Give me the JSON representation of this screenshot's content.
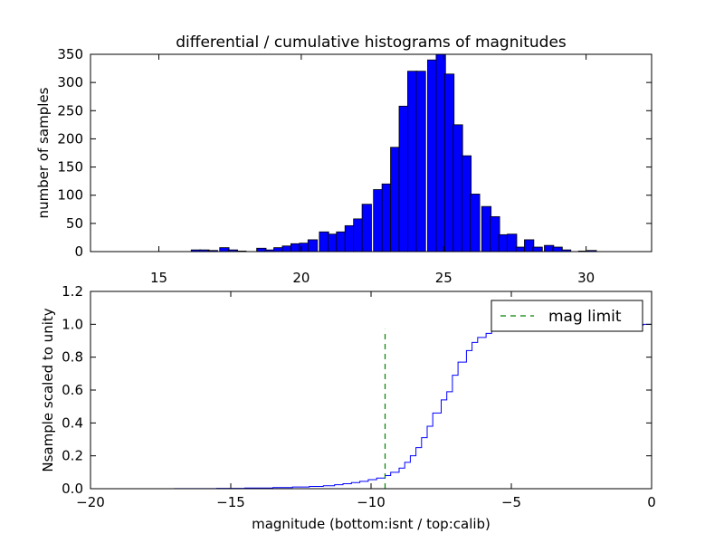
{
  "chart_data": [
    {
      "type": "bar",
      "title": "differential / cumulative histograms of magnitudes",
      "ylabel": "number of samples",
      "xlabel": "",
      "xlim": [
        12.6,
        32.3
      ],
      "ylim": [
        0,
        350
      ],
      "xticks": [
        15,
        20,
        25,
        30
      ],
      "yticks": [
        0,
        50,
        100,
        150,
        200,
        250,
        300,
        350
      ],
      "bar_color": "#0000ff",
      "bar_width": 0.33,
      "bars": [
        {
          "x": 16.3,
          "y": 3
        },
        {
          "x": 16.6,
          "y": 3
        },
        {
          "x": 16.9,
          "y": 2
        },
        {
          "x": 17.3,
          "y": 7
        },
        {
          "x": 17.6,
          "y": 3
        },
        {
          "x": 17.9,
          "y": 1
        },
        {
          "x": 18.6,
          "y": 6
        },
        {
          "x": 18.9,
          "y": 3
        },
        {
          "x": 19.2,
          "y": 7
        },
        {
          "x": 19.5,
          "y": 10
        },
        {
          "x": 19.8,
          "y": 14
        },
        {
          "x": 20.1,
          "y": 15
        },
        {
          "x": 20.4,
          "y": 21
        },
        {
          "x": 20.8,
          "y": 35
        },
        {
          "x": 21.1,
          "y": 31
        },
        {
          "x": 21.4,
          "y": 35
        },
        {
          "x": 21.7,
          "y": 46
        },
        {
          "x": 22.0,
          "y": 58
        },
        {
          "x": 22.3,
          "y": 84
        },
        {
          "x": 22.7,
          "y": 110
        },
        {
          "x": 23.0,
          "y": 120
        },
        {
          "x": 23.3,
          "y": 185
        },
        {
          "x": 23.6,
          "y": 258
        },
        {
          "x": 23.9,
          "y": 320
        },
        {
          "x": 24.2,
          "y": 320
        },
        {
          "x": 24.6,
          "y": 340
        },
        {
          "x": 24.9,
          "y": 350
        },
        {
          "x": 25.2,
          "y": 315
        },
        {
          "x": 25.5,
          "y": 225
        },
        {
          "x": 25.8,
          "y": 170
        },
        {
          "x": 26.1,
          "y": 102
        },
        {
          "x": 26.5,
          "y": 80
        },
        {
          "x": 26.8,
          "y": 62
        },
        {
          "x": 27.1,
          "y": 30
        },
        {
          "x": 27.4,
          "y": 31
        },
        {
          "x": 27.7,
          "y": 8
        },
        {
          "x": 28.0,
          "y": 21
        },
        {
          "x": 28.3,
          "y": 8
        },
        {
          "x": 28.7,
          "y": 11
        },
        {
          "x": 29.0,
          "y": 8
        },
        {
          "x": 29.3,
          "y": 3
        },
        {
          "x": 29.9,
          "y": 1
        },
        {
          "x": 30.2,
          "y": 2
        }
      ]
    },
    {
      "type": "line",
      "xlabel": "magnitude (bottom:isnt / top:calib)",
      "ylabel": "Nsample scaled to unity",
      "xlim": [
        -20,
        0
      ],
      "ylim": [
        0,
        1.2
      ],
      "xticks": [
        -20,
        -15,
        -10,
        -5,
        0
      ],
      "yticks": [
        0.0,
        0.2,
        0.4,
        0.6,
        0.8,
        1.0,
        1.2
      ],
      "step_color": "#0000ff",
      "step": [
        {
          "x": -20.0,
          "y": 0.0
        },
        {
          "x": -17.0,
          "y": 0.001
        },
        {
          "x": -15.5,
          "y": 0.002
        },
        {
          "x": -14.5,
          "y": 0.004
        },
        {
          "x": -13.5,
          "y": 0.007
        },
        {
          "x": -12.8,
          "y": 0.01
        },
        {
          "x": -12.2,
          "y": 0.014
        },
        {
          "x": -11.7,
          "y": 0.018
        },
        {
          "x": -11.3,
          "y": 0.024
        },
        {
          "x": -11.0,
          "y": 0.03
        },
        {
          "x": -10.7,
          "y": 0.037
        },
        {
          "x": -10.4,
          "y": 0.045
        },
        {
          "x": -10.1,
          "y": 0.055
        },
        {
          "x": -9.8,
          "y": 0.065
        },
        {
          "x": -9.5,
          "y": 0.08
        },
        {
          "x": -9.3,
          "y": 0.1
        },
        {
          "x": -9.0,
          "y": 0.125
        },
        {
          "x": -8.8,
          "y": 0.16
        },
        {
          "x": -8.6,
          "y": 0.2
        },
        {
          "x": -8.4,
          "y": 0.25
        },
        {
          "x": -8.2,
          "y": 0.31
        },
        {
          "x": -8.0,
          "y": 0.38
        },
        {
          "x": -7.8,
          "y": 0.46
        },
        {
          "x": -7.5,
          "y": 0.54
        },
        {
          "x": -7.3,
          "y": 0.59
        },
        {
          "x": -7.1,
          "y": 0.69
        },
        {
          "x": -6.9,
          "y": 0.77
        },
        {
          "x": -6.6,
          "y": 0.84
        },
        {
          "x": -6.4,
          "y": 0.89
        },
        {
          "x": -6.2,
          "y": 0.92
        },
        {
          "x": -5.9,
          "y": 0.945
        },
        {
          "x": -5.7,
          "y": 0.96
        },
        {
          "x": -5.5,
          "y": 0.97
        },
        {
          "x": -5.0,
          "y": 0.98
        },
        {
          "x": -4.0,
          "y": 0.99
        },
        {
          "x": -2.5,
          "y": 0.995
        },
        {
          "x": -0.3,
          "y": 1.0
        },
        {
          "x": 0.0,
          "y": 0.0
        }
      ],
      "mag_limit": {
        "x": -9.5,
        "y_top": 0.97,
        "color": "#008000"
      },
      "legend": {
        "label": "mag limit",
        "position": "upper right"
      }
    }
  ]
}
